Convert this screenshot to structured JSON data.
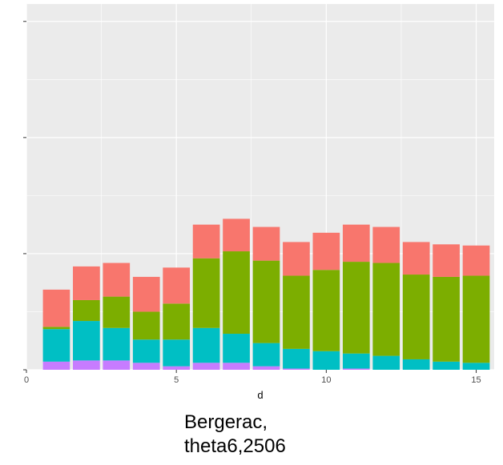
{
  "chart_data": {
    "type": "bar",
    "stacked": true,
    "title": "",
    "xlabel": "d",
    "ylabel": "",
    "x": [
      1,
      2,
      3,
      4,
      5,
      6,
      7,
      8,
      9,
      10,
      11,
      12,
      13,
      14,
      15
    ],
    "xlim": [
      0,
      15.6
    ],
    "ylim": [
      0,
      31.5
    ],
    "x_ticks": [
      0,
      5,
      10,
      15
    ],
    "y_tick_count": 4,
    "grid": true,
    "legend": "none",
    "series": [
      {
        "color": "#C77CFF",
        "values": [
          0.7,
          0.8,
          0.8,
          0.6,
          0.3,
          0.6,
          0.6,
          0.3,
          0.1,
          0.0,
          0.1,
          0.0,
          0.0,
          0.0,
          0.0
        ]
      },
      {
        "color": "#00BFC4",
        "values": [
          2.8,
          3.4,
          2.8,
          2.0,
          2.3,
          3.0,
          2.5,
          2.0,
          1.7,
          1.6,
          1.3,
          1.2,
          0.9,
          0.7,
          0.6
        ]
      },
      {
        "color": "#7CAE00",
        "values": [
          0.2,
          1.8,
          2.7,
          2.4,
          3.1,
          6.0,
          7.1,
          7.1,
          6.3,
          7.0,
          7.9,
          8.0,
          7.3,
          7.3,
          7.5
        ]
      },
      {
        "color": "#F8766D",
        "values": [
          3.2,
          2.9,
          2.9,
          3.0,
          3.1,
          2.9,
          2.8,
          2.9,
          2.9,
          3.2,
          3.2,
          3.1,
          2.8,
          2.8,
          2.6
        ]
      }
    ]
  },
  "caption": {
    "line1": "Bergerac,",
    "line2": "theta6,2506"
  }
}
